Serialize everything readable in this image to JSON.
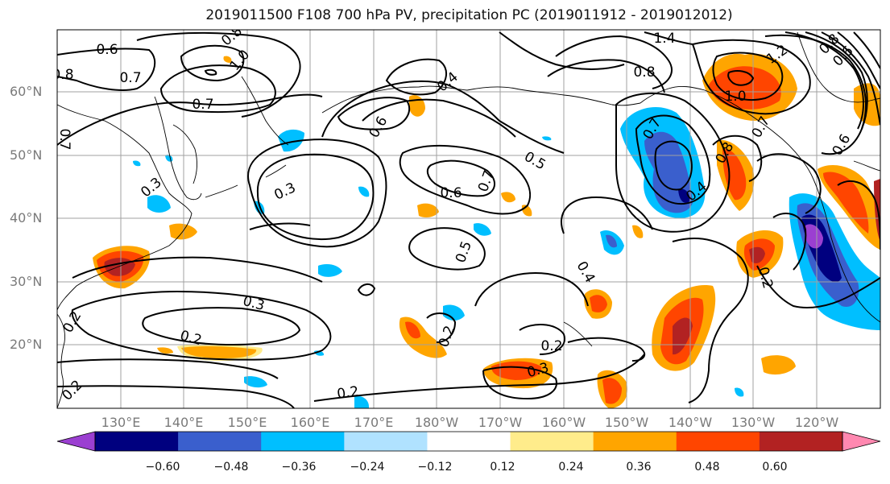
{
  "title": "2019011500 F108 700 hPa PV, precipitation PC (2019011912 - 2019012012)",
  "lat_labels": [
    "60°N",
    "50°N",
    "40°N",
    "30°N",
    "20°N"
  ],
  "lon_labels": [
    "130°E",
    "140°E",
    "150°E",
    "160°E",
    "170°E",
    "180°W",
    "170°W",
    "160°W",
    "150°W",
    "140°W",
    "130°W",
    "120°W"
  ],
  "colorbar": {
    "colors": [
      "#9b3fd1",
      "#00007f",
      "#3a5fcd",
      "#00bfff",
      "#b0e2ff",
      "#ffffff",
      "#ffec8b",
      "#ffa500",
      "#ff4500",
      "#b22222",
      "#ff88b0"
    ],
    "labels": [
      "−0.60",
      "−0.48",
      "−0.36",
      "−0.24",
      "−0.12",
      "0.12",
      "0.24",
      "0.36",
      "0.48",
      "0.60"
    ]
  },
  "contour_labels": [
    "0.6",
    "0.7",
    "0.8",
    "1.0",
    "0.7",
    "0.8",
    "0.4",
    "0.6",
    "1.4",
    "0.8",
    "1.2",
    "0.6",
    "0.7",
    "0.3",
    "0.6",
    "0.7",
    "0.5",
    "0.7",
    "0.8",
    "1.0",
    "0.7",
    "0.8",
    "0.6",
    "0.4",
    "0.3",
    "0.5",
    "0.4",
    "0.2",
    "0.3",
    "0.2",
    "0.2",
    "0.2",
    "0.3",
    "0.2",
    "0.2",
    "0.2",
    "0.4"
  ]
}
